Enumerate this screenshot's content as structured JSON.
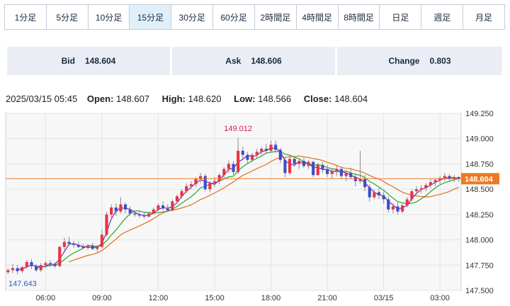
{
  "timeframe_tabs": [
    {
      "label": "1分足",
      "active": false
    },
    {
      "label": "5分足",
      "active": false
    },
    {
      "label": "10分足",
      "active": false
    },
    {
      "label": "15分足",
      "active": true
    },
    {
      "label": "30分足",
      "active": false
    },
    {
      "label": "60分足",
      "active": false
    },
    {
      "label": "2時間足",
      "active": false
    },
    {
      "label": "4時間足",
      "active": false
    },
    {
      "label": "8時間足",
      "active": false
    },
    {
      "label": "日足",
      "active": false
    },
    {
      "label": "週足",
      "active": false
    },
    {
      "label": "月足",
      "active": false
    }
  ],
  "quotes": {
    "bid_label": "Bid",
    "bid_value": "148.604",
    "ask_label": "Ask",
    "ask_value": "148.606",
    "change_label": "Change",
    "change_value": "0.803"
  },
  "ohlc": {
    "datetime": "2025/03/15 05:45",
    "open_label": "Open:",
    "open_value": "148.607",
    "high_label": "High:",
    "high_value": "148.620",
    "low_label": "Low:",
    "low_value": "148.566",
    "close_label": "Close:",
    "close_value": "148.604"
  },
  "colors": {
    "up": "#e8343f",
    "down": "#3b4fc9",
    "wick": "#8a8a8a",
    "ma_short": "#8a1fb5",
    "ma_mid": "#1fa82c",
    "ma_long": "#e0701a",
    "price_line": "#f07820",
    "plot_bg": "#f7f7f8",
    "grid": "#e4e4e6",
    "max_label": "#d02048",
    "min_label": "#2e5fb0"
  },
  "chart_data": {
    "type": "candlestick",
    "ylim": [
      147.5,
      149.25
    ],
    "y_ticks": [
      "149.250",
      "149.000",
      "148.750",
      "148.500",
      "148.250",
      "148.000",
      "147.750",
      "147.500"
    ],
    "x_ticks": [
      {
        "index": 8,
        "label": "06:00"
      },
      {
        "index": 20,
        "label": "09:00"
      },
      {
        "index": 32,
        "label": "12:00"
      },
      {
        "index": 44,
        "label": "15:00"
      },
      {
        "index": 56,
        "label": "18:00"
      },
      {
        "index": 68,
        "label": "21:00"
      },
      {
        "index": 80,
        "label": "03/15"
      },
      {
        "index": 92,
        "label": "03:00"
      }
    ],
    "max_marker": {
      "value": "149.012",
      "index": 49
    },
    "min_marker": {
      "value": "147.643"
    },
    "current_price": {
      "value": 148.604,
      "label": "148.604"
    },
    "moving_averages": [
      {
        "key": "ma_short",
        "period": 3
      },
      {
        "key": "ma_mid",
        "period": 7
      },
      {
        "key": "ma_long",
        "period": 14
      }
    ],
    "candles": [
      [
        147.68,
        147.72,
        147.66,
        147.7
      ],
      [
        147.7,
        147.76,
        147.67,
        147.72
      ],
      [
        147.72,
        147.75,
        147.66,
        147.69
      ],
      [
        147.69,
        147.74,
        147.67,
        147.73
      ],
      [
        147.73,
        147.8,
        147.71,
        147.78
      ],
      [
        147.78,
        147.81,
        147.71,
        147.74
      ],
      [
        147.74,
        147.76,
        147.68,
        147.7
      ],
      [
        147.7,
        147.77,
        147.68,
        147.75
      ],
      [
        147.75,
        147.79,
        147.72,
        147.77
      ],
      [
        147.77,
        147.8,
        147.73,
        147.76
      ],
      [
        147.76,
        147.78,
        147.72,
        147.74
      ],
      [
        147.74,
        147.94,
        147.73,
        147.93
      ],
      [
        147.93,
        148.02,
        147.9,
        147.98
      ],
      [
        147.98,
        148.03,
        147.94,
        147.96
      ],
      [
        147.96,
        147.99,
        147.92,
        147.95
      ],
      [
        147.95,
        147.98,
        147.92,
        147.93
      ],
      [
        147.93,
        147.96,
        147.91,
        147.92
      ],
      [
        147.92,
        147.96,
        147.9,
        147.94
      ],
      [
        147.94,
        147.97,
        147.9,
        147.91
      ],
      [
        147.91,
        147.95,
        147.88,
        147.93
      ],
      [
        147.93,
        148.1,
        147.92,
        148.05
      ],
      [
        148.05,
        148.28,
        148.03,
        148.25
      ],
      [
        148.25,
        148.35,
        148.2,
        148.32
      ],
      [
        148.32,
        148.36,
        148.24,
        148.28
      ],
      [
        148.28,
        148.42,
        148.26,
        148.35
      ],
      [
        148.35,
        148.37,
        148.26,
        148.3
      ],
      [
        148.3,
        148.33,
        148.24,
        148.26
      ],
      [
        148.26,
        148.29,
        148.23,
        148.25
      ],
      [
        148.25,
        148.28,
        148.22,
        148.24
      ],
      [
        148.24,
        148.27,
        148.21,
        148.23
      ],
      [
        148.23,
        148.28,
        148.22,
        148.26
      ],
      [
        148.26,
        148.32,
        148.25,
        148.3
      ],
      [
        148.3,
        148.36,
        148.28,
        148.34
      ],
      [
        148.34,
        148.38,
        148.29,
        148.31
      ],
      [
        148.31,
        148.35,
        148.28,
        148.29
      ],
      [
        148.29,
        148.4,
        148.28,
        148.38
      ],
      [
        148.38,
        148.45,
        148.36,
        148.43
      ],
      [
        148.43,
        148.5,
        148.41,
        148.48
      ],
      [
        148.48,
        148.56,
        148.46,
        148.53
      ],
      [
        148.53,
        148.58,
        148.5,
        148.55
      ],
      [
        148.55,
        148.62,
        148.52,
        148.6
      ],
      [
        148.6,
        148.66,
        148.56,
        148.63
      ],
      [
        148.63,
        148.65,
        148.48,
        148.5
      ],
      [
        148.5,
        148.58,
        148.47,
        148.56
      ],
      [
        148.56,
        148.62,
        148.52,
        148.58
      ],
      [
        148.58,
        148.66,
        148.55,
        148.64
      ],
      [
        148.64,
        148.72,
        148.6,
        148.7
      ],
      [
        148.7,
        148.78,
        148.66,
        148.75
      ],
      [
        148.75,
        148.78,
        148.64,
        148.67
      ],
      [
        148.67,
        149.01,
        148.65,
        148.88
      ],
      [
        148.88,
        148.92,
        148.8,
        148.84
      ],
      [
        148.84,
        148.87,
        148.76,
        148.79
      ],
      [
        148.79,
        148.86,
        148.77,
        148.84
      ],
      [
        148.84,
        148.9,
        148.81,
        148.87
      ],
      [
        148.87,
        148.92,
        148.84,
        148.9
      ],
      [
        148.9,
        148.95,
        148.86,
        148.88
      ],
      [
        148.88,
        148.98,
        148.86,
        148.94
      ],
      [
        148.94,
        148.98,
        148.86,
        148.89
      ],
      [
        148.89,
        148.91,
        148.76,
        148.79
      ],
      [
        148.79,
        148.82,
        148.62,
        148.66
      ],
      [
        148.66,
        148.84,
        148.64,
        148.8
      ],
      [
        148.8,
        148.83,
        148.72,
        148.75
      ],
      [
        148.75,
        148.8,
        148.7,
        148.78
      ],
      [
        148.78,
        148.81,
        148.71,
        148.73
      ],
      [
        148.73,
        148.79,
        148.7,
        148.77
      ],
      [
        148.77,
        148.78,
        148.62,
        148.64
      ],
      [
        148.64,
        148.76,
        148.63,
        148.74
      ],
      [
        148.74,
        148.77,
        148.66,
        148.7
      ],
      [
        148.7,
        148.74,
        148.62,
        148.65
      ],
      [
        148.65,
        148.71,
        148.6,
        148.68
      ],
      [
        148.68,
        148.73,
        148.63,
        148.7
      ],
      [
        148.7,
        148.72,
        148.6,
        148.63
      ],
      [
        148.63,
        148.68,
        148.58,
        148.66
      ],
      [
        148.66,
        148.7,
        148.6,
        148.62
      ],
      [
        148.62,
        148.66,
        148.53,
        148.58
      ],
      [
        148.58,
        148.88,
        148.56,
        148.6
      ],
      [
        148.6,
        148.64,
        148.48,
        148.52
      ],
      [
        148.52,
        148.55,
        148.38,
        148.42
      ],
      [
        148.42,
        148.5,
        148.4,
        148.47
      ],
      [
        148.47,
        148.51,
        148.4,
        148.44
      ],
      [
        148.44,
        148.48,
        148.36,
        148.4
      ],
      [
        148.4,
        148.43,
        148.27,
        148.3
      ],
      [
        148.3,
        148.36,
        148.26,
        148.33
      ],
      [
        148.33,
        148.37,
        148.25,
        148.28
      ],
      [
        148.28,
        148.36,
        148.26,
        148.34
      ],
      [
        148.34,
        148.42,
        148.32,
        148.4
      ],
      [
        148.4,
        148.5,
        148.38,
        148.48
      ],
      [
        148.48,
        148.53,
        148.44,
        148.5
      ],
      [
        148.5,
        148.54,
        148.46,
        148.51
      ],
      [
        148.51,
        148.56,
        148.48,
        148.54
      ],
      [
        148.54,
        148.6,
        148.51,
        148.57
      ],
      [
        148.57,
        148.61,
        148.53,
        148.59
      ],
      [
        148.59,
        148.63,
        148.55,
        148.61
      ],
      [
        148.61,
        148.66,
        148.58,
        148.63
      ],
      [
        148.63,
        148.65,
        148.58,
        148.6
      ],
      [
        148.6,
        148.64,
        148.57,
        148.62
      ],
      [
        148.62,
        148.63,
        148.57,
        148.6
      ]
    ]
  }
}
